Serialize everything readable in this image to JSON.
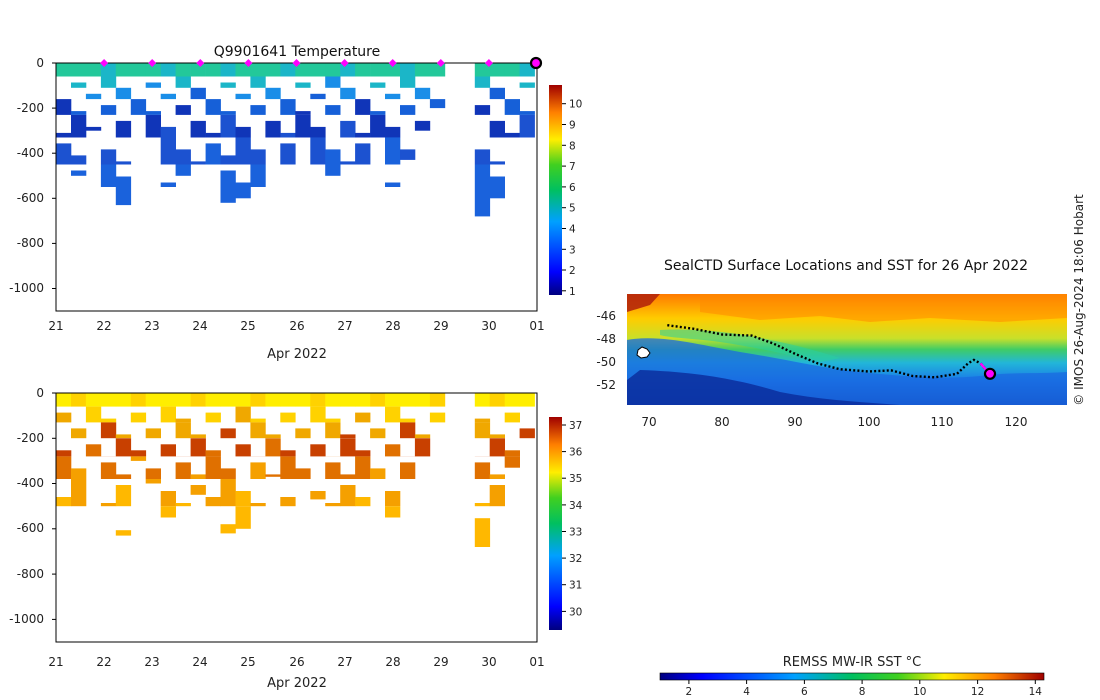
{
  "chart_data": [
    {
      "type": "heatmap",
      "panel": "temperature-profiles",
      "title": "Q9901641  Temperature",
      "xlabel": "Apr 2022",
      "x_ticks": [
        "21",
        "22",
        "23",
        "24",
        "25",
        "26",
        "27",
        "28",
        "29",
        "30",
        "01"
      ],
      "y_ticks": [
        "0",
        "-200",
        "-400",
        "-600",
        "-800",
        "-1000"
      ],
      "ylim": [
        -1100,
        0
      ],
      "colorbar_ticks": [
        "1",
        "2",
        "3",
        "4",
        "5",
        "6",
        "7",
        "8",
        "9",
        "10"
      ],
      "colorbar_range": [
        0.8,
        10.9
      ],
      "surface_markers_days": [
        22,
        23,
        24,
        25,
        26,
        27,
        28,
        29,
        30
      ],
      "last_location_marker_day": 31,
      "profile_depths": [
        -500,
        -500,
        -300,
        -550,
        -630,
        -300,
        -400,
        -550,
        -500,
        -450,
        -500,
        -620,
        -600,
        -550,
        -370,
        -500,
        -380,
        -470,
        -500,
        -500,
        -500,
        -380,
        -550,
        -430,
        -300,
        -200,
        -200,
        -680,
        -680,
        -600,
        -330,
        -330
      ]
    },
    {
      "type": "heatmap",
      "panel": "salinity-profiles",
      "title": "",
      "xlabel": "Apr 2022",
      "x_ticks": [
        "21",
        "22",
        "23",
        "24",
        "25",
        "26",
        "27",
        "28",
        "29",
        "30",
        "01"
      ],
      "y_ticks": [
        "0",
        "-200",
        "-400",
        "-600",
        "-800",
        "-1000"
      ],
      "ylim": [
        -1100,
        0
      ],
      "colorbar_ticks": [
        "30",
        "31",
        "32",
        "33",
        "34",
        "35",
        "36",
        "37"
      ],
      "colorbar_range": [
        29.3,
        37.3
      ]
    },
    {
      "type": "heatmap",
      "panel": "sst-map",
      "title": "SealCTD Surface Locations and SST for 26 Apr 2022",
      "x_ticks": [
        "70",
        "80",
        "90",
        "100",
        "110",
        "120"
      ],
      "y_ticks": [
        "-46",
        "-48",
        "-50",
        "-52"
      ],
      "xlim": [
        67,
        127
      ],
      "ylim": [
        -54.3,
        -44.7
      ],
      "colorbar_label": "REMSS MW-IR SST °C",
      "colorbar_ticks": [
        "2",
        "4",
        "6",
        "8",
        "10",
        "12",
        "14"
      ],
      "colorbar_range": [
        1,
        14.3
      ],
      "track": [
        [
          72.5,
          -47.4
        ],
        [
          76,
          -47.7
        ],
        [
          80,
          -48.2
        ],
        [
          84,
          -48.3
        ],
        [
          87,
          -49
        ],
        [
          90,
          -49.9
        ],
        [
          93,
          -50.7
        ],
        [
          96,
          -51.2
        ],
        [
          100,
          -51.4
        ],
        [
          103,
          -51.3
        ],
        [
          106,
          -51.8
        ],
        [
          109,
          -51.9
        ],
        [
          112,
          -51.6
        ],
        [
          113.5,
          -50.7
        ],
        [
          114.3,
          -50.4
        ],
        [
          115.2,
          -50.7
        ],
        [
          116.3,
          -51.5
        ]
      ],
      "track_latest": [
        [
          115.2,
          -50.7
        ],
        [
          116.3,
          -51.5
        ]
      ],
      "last_position": [
        116.5,
        -51.6
      ]
    }
  ],
  "credit": "© IMOS 26-Aug-2024 18:06 Hobart",
  "colors": {
    "surface_marker": "#ff00ff",
    "track": "#000000",
    "last_position_outline": "#000000",
    "last_position_fill": "#ff00ff"
  }
}
